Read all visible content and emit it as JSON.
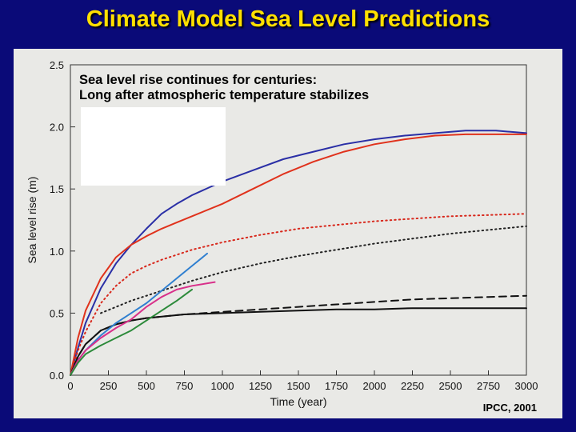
{
  "slide": {
    "title": "Climate Model Sea Level Predictions",
    "annotation_line1": "Sea level rise continues for centuries:",
    "annotation_line2": "Long after atmospheric temperature stabilizes",
    "source": "IPCC, 2001"
  },
  "colors": {
    "background": "#0a0a78",
    "title": "#ffe000",
    "panel": "#e9e9e6"
  },
  "chart_data": {
    "type": "line",
    "xlabel": "Time (year)",
    "ylabel": "Sea level rise (m)",
    "xlim": [
      0,
      3000
    ],
    "ylim": [
      0,
      2.5
    ],
    "xticks": [
      0,
      250,
      500,
      750,
      1000,
      1250,
      1500,
      1750,
      2000,
      2250,
      2500,
      2750,
      3000
    ],
    "yticks": [
      0.0,
      0.5,
      1.0,
      1.5,
      2.0,
      2.5
    ],
    "ytick_labels": [
      "0.0",
      "0.5",
      "1.0",
      "1.5",
      "2.0",
      "2.5"
    ],
    "series": [
      {
        "name": "blue-solid",
        "color": "#2a2fa6",
        "dash": "solid",
        "x": [
          0,
          50,
          100,
          200,
          300,
          400,
          500,
          600,
          700,
          800,
          1000,
          1200,
          1400,
          1600,
          1800,
          2000,
          2200,
          2400,
          2600,
          2800,
          3000
        ],
        "y": [
          0,
          0.22,
          0.42,
          0.7,
          0.9,
          1.05,
          1.18,
          1.3,
          1.38,
          1.45,
          1.56,
          1.65,
          1.74,
          1.8,
          1.86,
          1.9,
          1.93,
          1.95,
          1.97,
          1.97,
          1.95
        ]
      },
      {
        "name": "red-solid",
        "color": "#e0321c",
        "dash": "solid",
        "x": [
          0,
          50,
          100,
          200,
          300,
          400,
          500,
          600,
          700,
          800,
          1000,
          1200,
          1400,
          1600,
          1800,
          2000,
          2200,
          2400,
          2600,
          2800,
          3000
        ],
        "y": [
          0,
          0.3,
          0.52,
          0.78,
          0.95,
          1.05,
          1.12,
          1.18,
          1.23,
          1.28,
          1.38,
          1.5,
          1.62,
          1.72,
          1.8,
          1.86,
          1.9,
          1.93,
          1.94,
          1.94,
          1.94
        ]
      },
      {
        "name": "red-dotted",
        "color": "#d8281c",
        "dash": "dotted",
        "x": [
          0,
          50,
          100,
          200,
          300,
          400,
          500,
          600,
          700,
          800,
          1000,
          1250,
          1500,
          1750,
          2000,
          2250,
          2500,
          2750,
          3000
        ],
        "y": [
          0,
          0.2,
          0.35,
          0.58,
          0.72,
          0.82,
          0.88,
          0.93,
          0.97,
          1.01,
          1.07,
          1.13,
          1.18,
          1.21,
          1.24,
          1.26,
          1.28,
          1.29,
          1.3
        ]
      },
      {
        "name": "black-dotted",
        "color": "#222222",
        "dash": "dotted",
        "x": [
          200,
          400,
          600,
          800,
          1000,
          1250,
          1500,
          1750,
          2000,
          2250,
          2500,
          2750,
          3000
        ],
        "y": [
          0.5,
          0.6,
          0.68,
          0.76,
          0.83,
          0.9,
          0.96,
          1.01,
          1.06,
          1.1,
          1.14,
          1.17,
          1.2
        ]
      },
      {
        "name": "black-dashed",
        "color": "#111111",
        "dash": "dashed",
        "x": [
          0,
          50,
          100,
          200,
          300,
          400,
          500,
          750,
          1000,
          1250,
          1500,
          1750,
          2000,
          2250,
          2500,
          2750,
          3000
        ],
        "y": [
          0,
          0.15,
          0.25,
          0.36,
          0.41,
          0.44,
          0.46,
          0.49,
          0.51,
          0.53,
          0.55,
          0.57,
          0.59,
          0.61,
          0.62,
          0.63,
          0.64
        ]
      },
      {
        "name": "black-solid",
        "color": "#111111",
        "dash": "solid",
        "x": [
          0,
          50,
          100,
          200,
          300,
          400,
          500,
          750,
          1000,
          1250,
          1500,
          1750,
          2000,
          2250,
          2500,
          2750,
          3000
        ],
        "y": [
          0,
          0.15,
          0.25,
          0.36,
          0.41,
          0.44,
          0.46,
          0.49,
          0.5,
          0.51,
          0.52,
          0.53,
          0.53,
          0.54,
          0.54,
          0.54,
          0.54
        ]
      },
      {
        "name": "light-blue",
        "color": "#2f7fd0",
        "dash": "solid",
        "x": [
          0,
          50,
          100,
          200,
          300,
          400,
          500,
          600,
          700,
          800,
          900
        ],
        "y": [
          0,
          0.12,
          0.2,
          0.32,
          0.42,
          0.5,
          0.58,
          0.68,
          0.78,
          0.88,
          0.98
        ]
      },
      {
        "name": "magenta",
        "color": "#d8308a",
        "dash": "solid",
        "x": [
          0,
          50,
          100,
          200,
          300,
          400,
          500,
          600,
          700,
          800,
          950
        ],
        "y": [
          0,
          0.12,
          0.2,
          0.3,
          0.38,
          0.45,
          0.55,
          0.63,
          0.69,
          0.72,
          0.75
        ]
      },
      {
        "name": "green",
        "color": "#2c8a3a",
        "dash": "solid",
        "x": [
          0,
          50,
          100,
          200,
          300,
          400,
          500,
          600,
          700,
          800
        ],
        "y": [
          0,
          0.1,
          0.17,
          0.24,
          0.3,
          0.36,
          0.44,
          0.52,
          0.6,
          0.69
        ]
      }
    ]
  }
}
